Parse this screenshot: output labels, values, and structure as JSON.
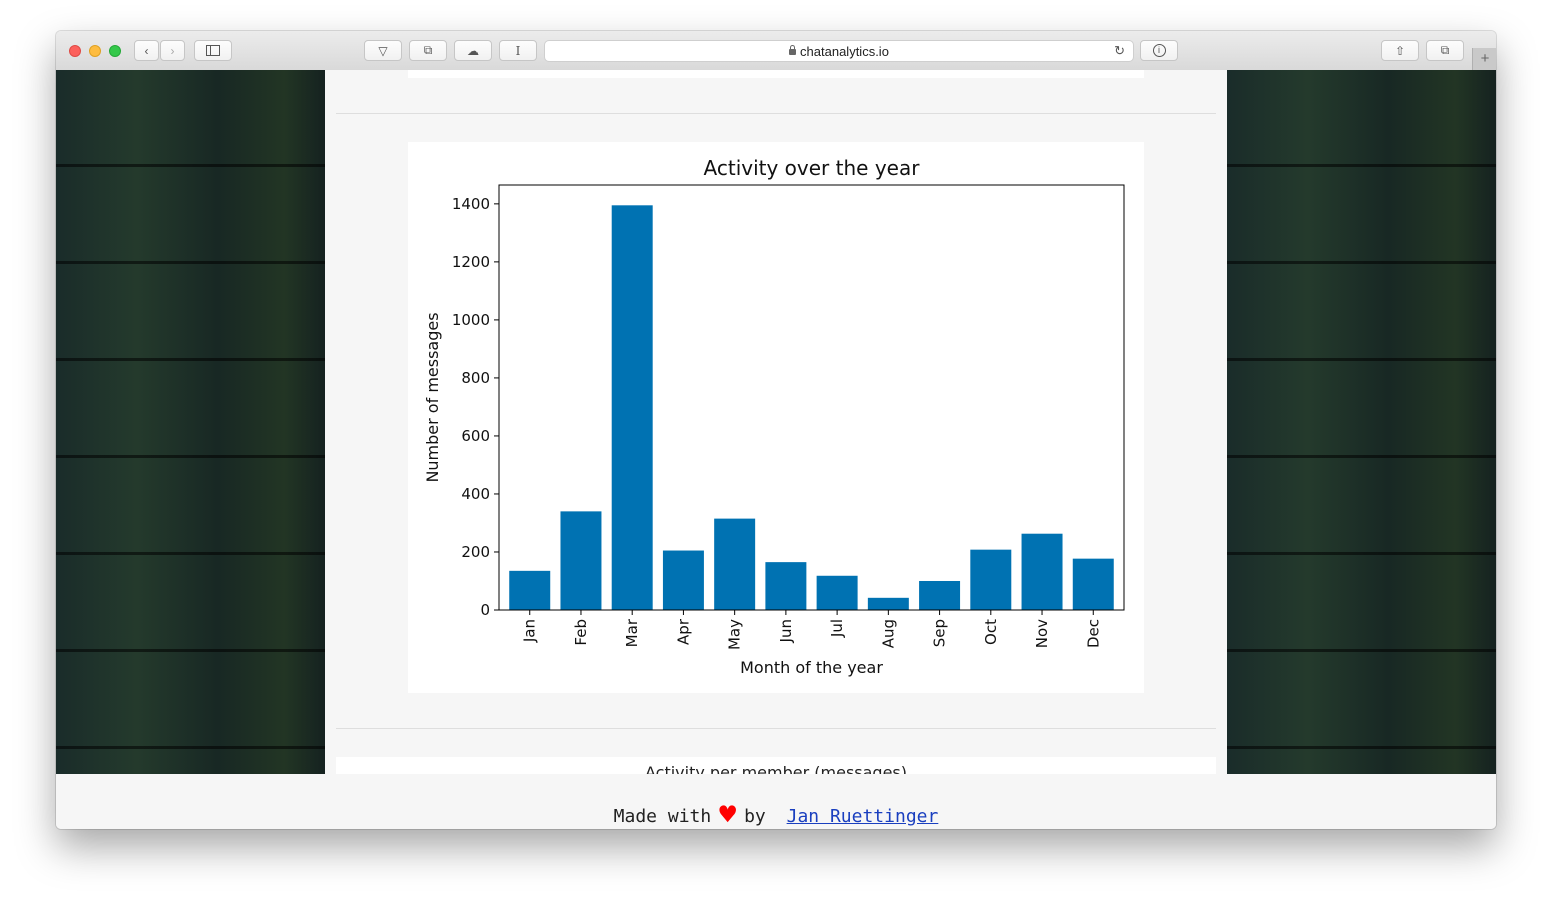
{
  "browser": {
    "url": "chatanalytics.io",
    "traffic_lights": {
      "close": "#fc605c",
      "minimize": "#fdbc40",
      "zoom": "#34c84a"
    }
  },
  "page": {
    "next_section_title": "Activity per member (messages)",
    "footer": {
      "prefix": "Made with",
      "middle": "by",
      "author": "Jan Ruettinger",
      "heart_color": "#ff0000"
    }
  },
  "chart_data": {
    "type": "bar",
    "title": "Activity over the year",
    "xlabel": "Month of the year",
    "ylabel": "Number of messages",
    "categories": [
      "Jan",
      "Feb",
      "Mar",
      "Apr",
      "May",
      "Jun",
      "Jul",
      "Aug",
      "Sep",
      "Oct",
      "Nov",
      "Dec"
    ],
    "values": [
      135,
      340,
      1395,
      205,
      315,
      165,
      118,
      42,
      100,
      208,
      263,
      177
    ],
    "ylim": [
      0,
      1465
    ],
    "yticks": [
      0,
      200,
      400,
      600,
      800,
      1000,
      1200,
      1400
    ],
    "bar_color": "#0072b2",
    "grid": false
  }
}
